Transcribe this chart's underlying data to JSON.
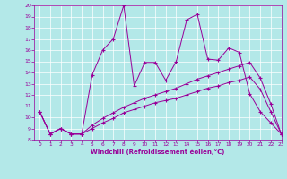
{
  "xlabel": "Windchill (Refroidissement éolien,°C)",
  "bg_color": "#b3e8e8",
  "line_color": "#990099",
  "xlim": [
    -0.5,
    23
  ],
  "ylim": [
    8,
    20
  ],
  "xticks": [
    0,
    1,
    2,
    3,
    4,
    5,
    6,
    7,
    8,
    9,
    10,
    11,
    12,
    13,
    14,
    15,
    16,
    17,
    18,
    19,
    20,
    21,
    22,
    23
  ],
  "yticks": [
    8,
    9,
    10,
    11,
    12,
    13,
    14,
    15,
    16,
    17,
    18,
    19,
    20
  ],
  "series1_x": [
    0,
    1,
    2,
    3,
    4,
    5,
    6,
    7,
    8,
    9,
    10,
    11,
    12,
    13,
    14,
    15,
    16,
    17,
    18,
    19,
    20,
    21,
    22,
    23
  ],
  "series1_y": [
    10.5,
    8.5,
    9.0,
    8.5,
    8.5,
    13.8,
    16.0,
    17.0,
    20.0,
    12.8,
    14.9,
    14.9,
    13.3,
    15.0,
    18.7,
    19.2,
    15.2,
    15.1,
    16.2,
    15.8,
    12.1,
    10.5,
    9.5,
    8.5
  ],
  "series2_x": [
    0,
    1,
    2,
    3,
    4,
    5,
    6,
    7,
    8,
    9,
    10,
    11,
    12,
    13,
    14,
    15,
    16,
    17,
    18,
    19,
    20,
    21,
    22,
    23
  ],
  "series2_y": [
    10.5,
    8.5,
    9.0,
    8.5,
    8.5,
    9.3,
    9.9,
    10.4,
    10.9,
    11.3,
    11.7,
    12.0,
    12.3,
    12.6,
    13.0,
    13.4,
    13.7,
    14.0,
    14.3,
    14.6,
    14.9,
    13.5,
    11.2,
    8.5
  ],
  "series3_x": [
    0,
    1,
    2,
    3,
    4,
    5,
    6,
    7,
    8,
    9,
    10,
    11,
    12,
    13,
    14,
    15,
    16,
    17,
    18,
    19,
    20,
    21,
    22,
    23
  ],
  "series3_y": [
    10.5,
    8.5,
    9.0,
    8.5,
    8.5,
    9.0,
    9.5,
    9.9,
    10.4,
    10.7,
    11.0,
    11.3,
    11.5,
    11.7,
    12.0,
    12.3,
    12.6,
    12.8,
    13.1,
    13.3,
    13.6,
    12.5,
    10.5,
    8.5
  ]
}
